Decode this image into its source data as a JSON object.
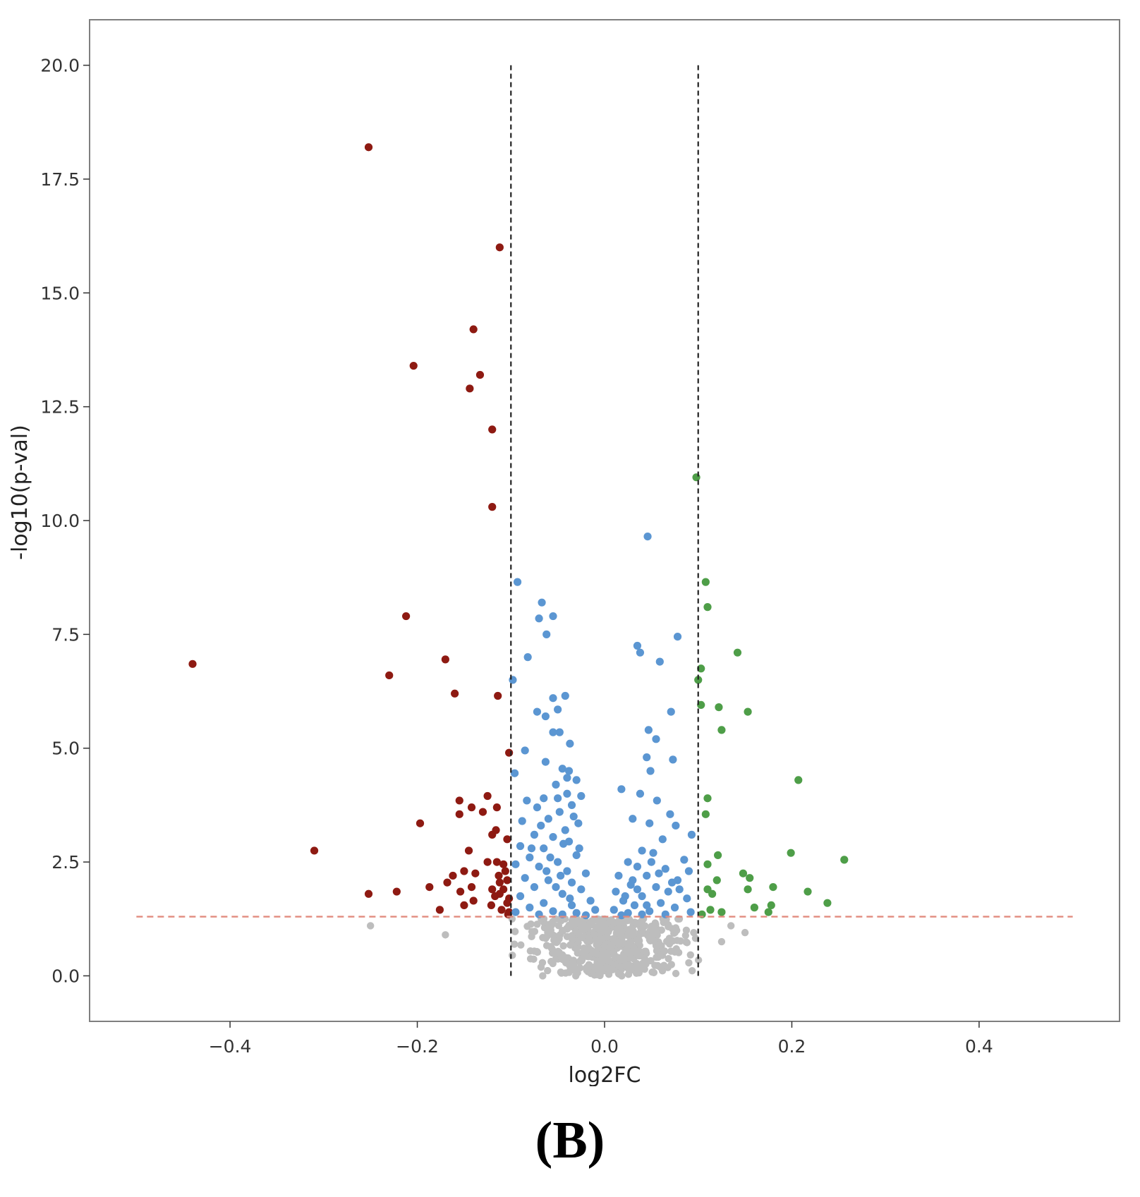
{
  "panel_label": "(B)",
  "colors": {
    "down": "#8e1a12",
    "mid_sig": "#5b96d2",
    "up": "#4e9e48",
    "nonsig": "#bdbdbd",
    "threshold_fc": "#222222",
    "threshold_p": "#e28a7e",
    "frame": "#7f7f7f"
  },
  "chart_data": {
    "type": "scatter",
    "xlabel": "log2FC",
    "ylabel": "-log10(p-val)",
    "xlim": [
      -0.55,
      0.55
    ],
    "ylim": [
      -1.0,
      21.0
    ],
    "xticks": [
      -0.4,
      -0.2,
      0.0,
      0.2,
      0.4
    ],
    "xtick_labels": [
      "−0.4",
      "−0.2",
      "0.0",
      "0.2",
      "0.4"
    ],
    "yticks": [
      0,
      2.5,
      5,
      7.5,
      10,
      12.5,
      15,
      17.5,
      20
    ],
    "ytick_labels": [
      "0.0",
      "2.5",
      "5.0",
      "7.5",
      "10.0",
      "12.5",
      "15.0",
      "17.5",
      "20.0"
    ],
    "grid": false,
    "thresholds": {
      "log2fc": [
        -0.1,
        0.1
      ],
      "log2fc_line_span": [
        0,
        20
      ],
      "neg_log10_p": 1.3,
      "p_line_span": [
        -0.5,
        0.5
      ]
    },
    "series": [
      {
        "key": "down",
        "points": [
          [
            -0.252,
            18.2
          ],
          [
            -0.112,
            16.0
          ],
          [
            -0.14,
            14.2
          ],
          [
            -0.204,
            13.4
          ],
          [
            -0.133,
            13.2
          ],
          [
            -0.144,
            12.9
          ],
          [
            -0.12,
            12.0
          ],
          [
            -0.12,
            10.3
          ],
          [
            -0.212,
            7.9
          ],
          [
            -0.17,
            6.95
          ],
          [
            -0.44,
            6.85
          ],
          [
            -0.23,
            6.6
          ],
          [
            -0.16,
            6.2
          ],
          [
            -0.114,
            6.15
          ],
          [
            -0.102,
            4.9
          ],
          [
            -0.155,
            3.85
          ],
          [
            -0.125,
            3.95
          ],
          [
            -0.142,
            3.7
          ],
          [
            -0.13,
            3.6
          ],
          [
            -0.115,
            3.7
          ],
          [
            -0.155,
            3.55
          ],
          [
            -0.197,
            3.35
          ],
          [
            -0.12,
            3.1
          ],
          [
            -0.104,
            3.0
          ],
          [
            -0.31,
            2.75
          ],
          [
            -0.145,
            2.75
          ],
          [
            -0.115,
            2.5
          ],
          [
            -0.108,
            2.45
          ],
          [
            -0.15,
            2.3
          ],
          [
            -0.138,
            2.25
          ],
          [
            -0.162,
            2.2
          ],
          [
            -0.168,
            2.05
          ],
          [
            -0.112,
            2.05
          ],
          [
            -0.104,
            2.1
          ],
          [
            -0.187,
            1.95
          ],
          [
            -0.142,
            1.95
          ],
          [
            -0.12,
            1.9
          ],
          [
            -0.222,
            1.85
          ],
          [
            -0.154,
            1.85
          ],
          [
            -0.252,
            1.8
          ],
          [
            -0.112,
            1.8
          ],
          [
            -0.102,
            1.7
          ],
          [
            -0.14,
            1.65
          ],
          [
            -0.15,
            1.55
          ],
          [
            -0.121,
            1.55
          ],
          [
            -0.176,
            1.45
          ],
          [
            -0.11,
            1.45
          ],
          [
            -0.102,
            1.4
          ],
          [
            -0.104,
            1.6
          ],
          [
            -0.108,
            1.9
          ],
          [
            -0.113,
            2.2
          ],
          [
            -0.117,
            1.75
          ],
          [
            -0.106,
            2.3
          ],
          [
            -0.125,
            2.5
          ],
          [
            -0.116,
            3.2
          ],
          [
            -0.103,
            1.35
          ]
        ]
      },
      {
        "key": "mid_sig",
        "points": [
          [
            0.046,
            9.65
          ],
          [
            -0.093,
            8.65
          ],
          [
            -0.067,
            8.2
          ],
          [
            -0.07,
            7.85
          ],
          [
            -0.055,
            7.9
          ],
          [
            -0.062,
            7.5
          ],
          [
            0.078,
            7.45
          ],
          [
            0.035,
            7.25
          ],
          [
            0.038,
            7.1
          ],
          [
            -0.082,
            7.0
          ],
          [
            0.059,
            6.9
          ],
          [
            -0.098,
            6.5
          ],
          [
            -0.055,
            6.1
          ],
          [
            -0.042,
            6.15
          ],
          [
            0.071,
            5.8
          ],
          [
            -0.05,
            5.85
          ],
          [
            -0.072,
            5.8
          ],
          [
            -0.063,
            5.7
          ],
          [
            0.047,
            5.4
          ],
          [
            0.055,
            5.2
          ],
          [
            -0.055,
            5.35
          ],
          [
            -0.048,
            5.35
          ],
          [
            -0.037,
            5.1
          ],
          [
            -0.085,
            4.95
          ],
          [
            0.045,
            4.8
          ],
          [
            0.073,
            4.75
          ],
          [
            -0.063,
            4.7
          ],
          [
            -0.045,
            4.55
          ],
          [
            -0.038,
            4.5
          ],
          [
            0.049,
            4.5
          ],
          [
            -0.096,
            4.45
          ],
          [
            -0.03,
            4.3
          ],
          [
            -0.04,
            4.35
          ],
          [
            -0.052,
            4.2
          ],
          [
            0.018,
            4.1
          ],
          [
            0.038,
            4.0
          ],
          [
            -0.025,
            3.95
          ],
          [
            -0.065,
            3.9
          ],
          [
            -0.083,
            3.85
          ],
          [
            0.056,
            3.85
          ],
          [
            -0.035,
            3.75
          ],
          [
            -0.072,
            3.7
          ],
          [
            -0.048,
            3.6
          ],
          [
            0.07,
            3.55
          ],
          [
            0.03,
            3.45
          ],
          [
            -0.088,
            3.4
          ],
          [
            -0.06,
            3.45
          ],
          [
            -0.028,
            3.35
          ],
          [
            0.048,
            3.35
          ],
          [
            0.076,
            3.3
          ],
          [
            -0.042,
            3.2
          ],
          [
            -0.075,
            3.1
          ],
          [
            0.093,
            3.1
          ],
          [
            0.062,
            3.0
          ],
          [
            -0.055,
            3.05
          ],
          [
            -0.038,
            2.95
          ],
          [
            -0.09,
            2.85
          ],
          [
            -0.065,
            2.8
          ],
          [
            0.04,
            2.75
          ],
          [
            0.052,
            2.7
          ],
          [
            -0.03,
            2.65
          ],
          [
            -0.08,
            2.6
          ],
          [
            0.085,
            2.55
          ],
          [
            0.025,
            2.5
          ],
          [
            -0.05,
            2.5
          ],
          [
            -0.095,
            2.45
          ],
          [
            -0.07,
            2.4
          ],
          [
            0.035,
            2.4
          ],
          [
            0.065,
            2.35
          ],
          [
            0.09,
            2.3
          ],
          [
            -0.04,
            2.3
          ],
          [
            -0.02,
            2.25
          ],
          [
            0.015,
            2.2
          ],
          [
            0.045,
            2.2
          ],
          [
            -0.085,
            2.15
          ],
          [
            -0.06,
            2.1
          ],
          [
            0.078,
            2.1
          ],
          [
            -0.035,
            2.05
          ],
          [
            0.028,
            2.0
          ],
          [
            -0.075,
            1.95
          ],
          [
            0.055,
            1.95
          ],
          [
            -0.025,
            1.9
          ],
          [
            0.012,
            1.85
          ],
          [
            0.068,
            1.85
          ],
          [
            -0.045,
            1.8
          ],
          [
            -0.09,
            1.75
          ],
          [
            0.04,
            1.75
          ],
          [
            0.088,
            1.7
          ],
          [
            -0.015,
            1.65
          ],
          [
            0.02,
            1.65
          ],
          [
            -0.065,
            1.6
          ],
          [
            0.06,
            1.6
          ],
          [
            -0.035,
            1.55
          ],
          [
            0.032,
            1.55
          ],
          [
            -0.08,
            1.5
          ],
          [
            0.075,
            1.5
          ],
          [
            -0.01,
            1.45
          ],
          [
            0.01,
            1.45
          ],
          [
            -0.055,
            1.42
          ],
          [
            0.048,
            1.42
          ],
          [
            -0.095,
            1.4
          ],
          [
            0.092,
            1.4
          ],
          [
            -0.03,
            1.38
          ],
          [
            0.025,
            1.38
          ],
          [
            -0.07,
            1.35
          ],
          [
            0.065,
            1.35
          ],
          [
            -0.045,
            1.35
          ],
          [
            0.04,
            1.35
          ],
          [
            -0.02,
            1.33
          ],
          [
            0.018,
            1.33
          ],
          [
            -0.058,
            2.6
          ],
          [
            -0.044,
            2.9
          ],
          [
            -0.033,
            3.5
          ],
          [
            -0.05,
            3.9
          ],
          [
            -0.04,
            4.0
          ],
          [
            -0.047,
            2.2
          ],
          [
            -0.027,
            2.8
          ],
          [
            -0.062,
            2.3
          ],
          [
            0.03,
            2.1
          ],
          [
            0.05,
            2.5
          ],
          [
            0.022,
            1.75
          ],
          [
            0.058,
            2.25
          ],
          [
            0.08,
            1.9
          ],
          [
            -0.078,
            2.8
          ],
          [
            -0.068,
            3.3
          ],
          [
            -0.037,
            1.7
          ],
          [
            -0.052,
            1.95
          ],
          [
            0.035,
            1.9
          ],
          [
            0.045,
            1.55
          ],
          [
            0.072,
            2.05
          ]
        ]
      },
      {
        "key": "up",
        "points": [
          [
            0.098,
            10.95
          ],
          [
            0.108,
            8.65
          ],
          [
            0.11,
            8.1
          ],
          [
            0.142,
            7.1
          ],
          [
            0.103,
            6.75
          ],
          [
            0.1,
            6.5
          ],
          [
            0.103,
            5.95
          ],
          [
            0.122,
            5.9
          ],
          [
            0.153,
            5.8
          ],
          [
            0.125,
            5.4
          ],
          [
            0.207,
            4.3
          ],
          [
            0.11,
            3.9
          ],
          [
            0.108,
            3.55
          ],
          [
            0.199,
            2.7
          ],
          [
            0.121,
            2.65
          ],
          [
            0.256,
            2.55
          ],
          [
            0.11,
            2.45
          ],
          [
            0.148,
            2.25
          ],
          [
            0.155,
            2.15
          ],
          [
            0.12,
            2.1
          ],
          [
            0.18,
            1.95
          ],
          [
            0.153,
            1.9
          ],
          [
            0.11,
            1.9
          ],
          [
            0.217,
            1.85
          ],
          [
            0.115,
            1.8
          ],
          [
            0.238,
            1.6
          ],
          [
            0.178,
            1.55
          ],
          [
            0.16,
            1.5
          ],
          [
            0.113,
            1.45
          ],
          [
            0.125,
            1.4
          ],
          [
            0.175,
            1.4
          ],
          [
            0.104,
            1.35
          ]
        ]
      }
    ]
  }
}
